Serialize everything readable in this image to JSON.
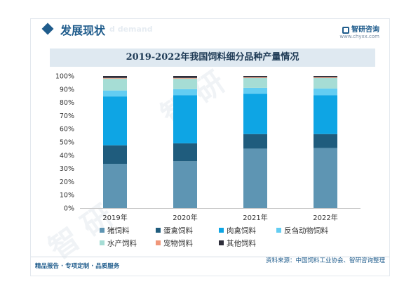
{
  "header": {
    "section_title": "发展现状",
    "section_title_en": "d demand",
    "brand_name": "智研咨询",
    "brand_url": "www.chyxx.com"
  },
  "footer": {
    "left": "精品报告 · 专项定制 · 品质服务",
    "right": "资料来源：中国饲料工业协会、智研咨询整理"
  },
  "colors": {
    "猪饲料": "#5e95b3",
    "蛋禽饲料": "#1f5c7d",
    "肉禽饲料": "#0ea5e4",
    "反刍动物饲料": "#63cdf2",
    "水产饲料": "#a6ddd5",
    "宠物饲料": "#f0977a",
    "其他饲料": "#2e2e3a",
    "brand": "#1f5c8c"
  },
  "chart_data": {
    "type": "bar",
    "stacked": true,
    "title": "2019-2022年我国饲料细分品种产量情况",
    "categories": [
      "2019年",
      "2020年",
      "2021年",
      "2022年"
    ],
    "ylim": [
      0,
      100
    ],
    "yticks": [
      "0%",
      "10%",
      "20%",
      "30%",
      "40%",
      "50%",
      "60%",
      "70%",
      "80%",
      "90%",
      "100%"
    ],
    "legend_position": "bottom",
    "series": [
      {
        "name": "猪饲料",
        "values": [
          33.5,
          35.5,
          45.0,
          45.5
        ]
      },
      {
        "name": "蛋禽饲料",
        "values": [
          14.0,
          13.5,
          11.0,
          10.5
        ]
      },
      {
        "name": "肉禽饲料",
        "values": [
          37.0,
          36.5,
          30.5,
          29.5
        ]
      },
      {
        "name": "反刍动物饲料",
        "values": [
          4.5,
          4.5,
          4.5,
          5.0
        ]
      },
      {
        "name": "水产饲料",
        "values": [
          9.0,
          8.0,
          7.5,
          8.0
        ]
      },
      {
        "name": "宠物饲料",
        "values": [
          0.5,
          0.5,
          0.5,
          0.5
        ]
      },
      {
        "name": "其他饲料",
        "values": [
          1.5,
          1.5,
          1.0,
          1.0
        ]
      }
    ]
  }
}
